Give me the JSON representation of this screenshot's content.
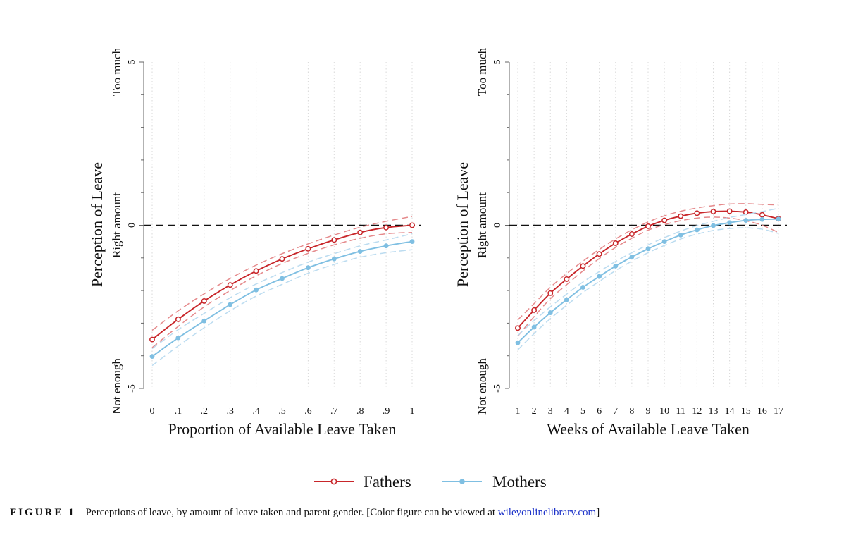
{
  "colors": {
    "fathers": "#c8262a",
    "fathers_ci": "#e58a8c",
    "mothers": "#7fbfe2",
    "mothers_ci": "#bcdcf0",
    "axis": "#666666",
    "grid": "#d8d8d8",
    "zero_line": "#111111"
  },
  "chart_data": [
    {
      "type": "line",
      "ylabel": "Perception of Leave",
      "y_annotations": {
        "top": "Too much",
        "middle": "Right amount",
        "bottom": "Not enough"
      },
      "xlabel": "Proportion of Available Leave Taken",
      "x_ticks": [
        0,
        0.1,
        0.2,
        0.3,
        0.4,
        0.5,
        0.6,
        0.7,
        0.8,
        0.9,
        1
      ],
      "x_tick_labels": [
        "0",
        ".1",
        ".2",
        ".3",
        ".4",
        ".5",
        ".6",
        ".7",
        ".8",
        ".9",
        "1"
      ],
      "xlim": [
        0,
        1
      ],
      "y_ticks": [
        5,
        0,
        -5
      ],
      "y_tick_labels": [
        "5",
        "0",
        "-5"
      ],
      "ylim": [
        -5,
        5
      ],
      "reference_line_y": 0,
      "grid": "vertical dotted",
      "series": [
        {
          "name": "Fathers",
          "x": [
            0,
            0.1,
            0.2,
            0.3,
            0.4,
            0.5,
            0.6,
            0.7,
            0.8,
            0.9,
            1
          ],
          "values": [
            -3.5,
            -2.88,
            -2.32,
            -1.83,
            -1.4,
            -1.03,
            -0.72,
            -0.45,
            -0.22,
            -0.07,
            0.0
          ],
          "ci_lower": [
            -3.75,
            -3.1,
            -2.5,
            -2.0,
            -1.55,
            -1.17,
            -0.86,
            -0.6,
            -0.4,
            -0.26,
            -0.22
          ],
          "ci_upper": [
            -3.22,
            -2.62,
            -2.1,
            -1.63,
            -1.22,
            -0.87,
            -0.57,
            -0.3,
            -0.06,
            0.12,
            0.27
          ],
          "marker": "hollow-circle"
        },
        {
          "name": "Mothers",
          "x": [
            0,
            0.1,
            0.2,
            0.3,
            0.4,
            0.5,
            0.6,
            0.7,
            0.8,
            0.9,
            1
          ],
          "values": [
            -4.02,
            -3.45,
            -2.93,
            -2.43,
            -1.98,
            -1.63,
            -1.3,
            -1.03,
            -0.8,
            -0.63,
            -0.5
          ],
          "ci_lower": [
            -4.3,
            -3.7,
            -3.14,
            -2.62,
            -2.17,
            -1.81,
            -1.47,
            -1.2,
            -0.98,
            -0.84,
            -0.75
          ],
          "ci_upper": [
            -3.78,
            -3.2,
            -2.7,
            -2.22,
            -1.8,
            -1.45,
            -1.13,
            -0.87,
            -0.63,
            -0.45,
            -0.26
          ],
          "marker": "filled-circle"
        }
      ]
    },
    {
      "type": "line",
      "ylabel": "Perception of Leave",
      "y_annotations": {
        "top": "Too much",
        "middle": "Right amount",
        "bottom": "Not enough"
      },
      "xlabel": "Weeks of Available Leave Taken",
      "x_ticks": [
        1,
        2,
        3,
        4,
        5,
        6,
        7,
        8,
        9,
        10,
        11,
        12,
        13,
        14,
        15,
        16,
        17
      ],
      "x_tick_labels": [
        "1",
        "2",
        "3",
        "4",
        "5",
        "6",
        "7",
        "8",
        "9",
        "10",
        "11",
        "12",
        "13",
        "14",
        "15",
        "16",
        "17"
      ],
      "xlim": [
        1,
        17
      ],
      "y_ticks": [
        5,
        0,
        -5
      ],
      "y_tick_labels": [
        "5",
        "0",
        "-5"
      ],
      "ylim": [
        -5,
        5
      ],
      "reference_line_y": 0,
      "grid": "vertical dotted",
      "series": [
        {
          "name": "Fathers",
          "x": [
            1,
            2,
            3,
            4,
            5,
            6,
            7,
            8,
            9,
            10,
            11,
            12,
            13,
            14,
            15,
            16,
            17
          ],
          "values": [
            -3.15,
            -2.6,
            -2.08,
            -1.65,
            -1.25,
            -0.88,
            -0.55,
            -0.27,
            -0.03,
            0.15,
            0.28,
            0.37,
            0.42,
            0.43,
            0.4,
            0.32,
            0.2
          ],
          "ci_lower": [
            -3.4,
            -2.8,
            -2.25,
            -1.82,
            -1.4,
            -1.02,
            -0.68,
            -0.4,
            -0.15,
            0.02,
            0.14,
            0.22,
            0.25,
            0.22,
            0.14,
            0.0,
            -0.22
          ],
          "ci_upper": [
            -2.9,
            -2.4,
            -1.9,
            -1.48,
            -1.1,
            -0.74,
            -0.42,
            -0.14,
            0.1,
            0.29,
            0.43,
            0.53,
            0.6,
            0.65,
            0.66,
            0.64,
            0.62
          ],
          "marker": "hollow-circle"
        },
        {
          "name": "Mothers",
          "x": [
            1,
            2,
            3,
            4,
            5,
            6,
            7,
            8,
            9,
            10,
            11,
            12,
            13,
            14,
            15,
            16,
            17
          ],
          "values": [
            -3.6,
            -3.12,
            -2.68,
            -2.28,
            -1.9,
            -1.57,
            -1.25,
            -0.97,
            -0.72,
            -0.5,
            -0.3,
            -0.14,
            -0.01,
            0.08,
            0.15,
            0.18,
            0.19
          ],
          "ci_lower": [
            -3.82,
            -3.32,
            -2.86,
            -2.45,
            -2.06,
            -1.72,
            -1.39,
            -1.1,
            -0.84,
            -0.62,
            -0.42,
            -0.27,
            -0.16,
            -0.1,
            -0.08,
            -0.12,
            -0.25
          ],
          "ci_upper": [
            -3.38,
            -2.92,
            -2.5,
            -2.11,
            -1.74,
            -1.42,
            -1.11,
            -0.84,
            -0.6,
            -0.38,
            -0.18,
            -0.01,
            0.12,
            0.24,
            0.33,
            0.42,
            0.52
          ],
          "marker": "filled-circle"
        }
      ]
    }
  ],
  "legend": {
    "fathers_label": "Fathers",
    "mothers_label": "Mothers"
  },
  "caption": {
    "label": "FIGURE 1",
    "text": "Perceptions of leave, by amount of leave taken and parent gender. [Color figure can be viewed at ",
    "link": "wileyonlinelibrary.com",
    "end": "]"
  }
}
